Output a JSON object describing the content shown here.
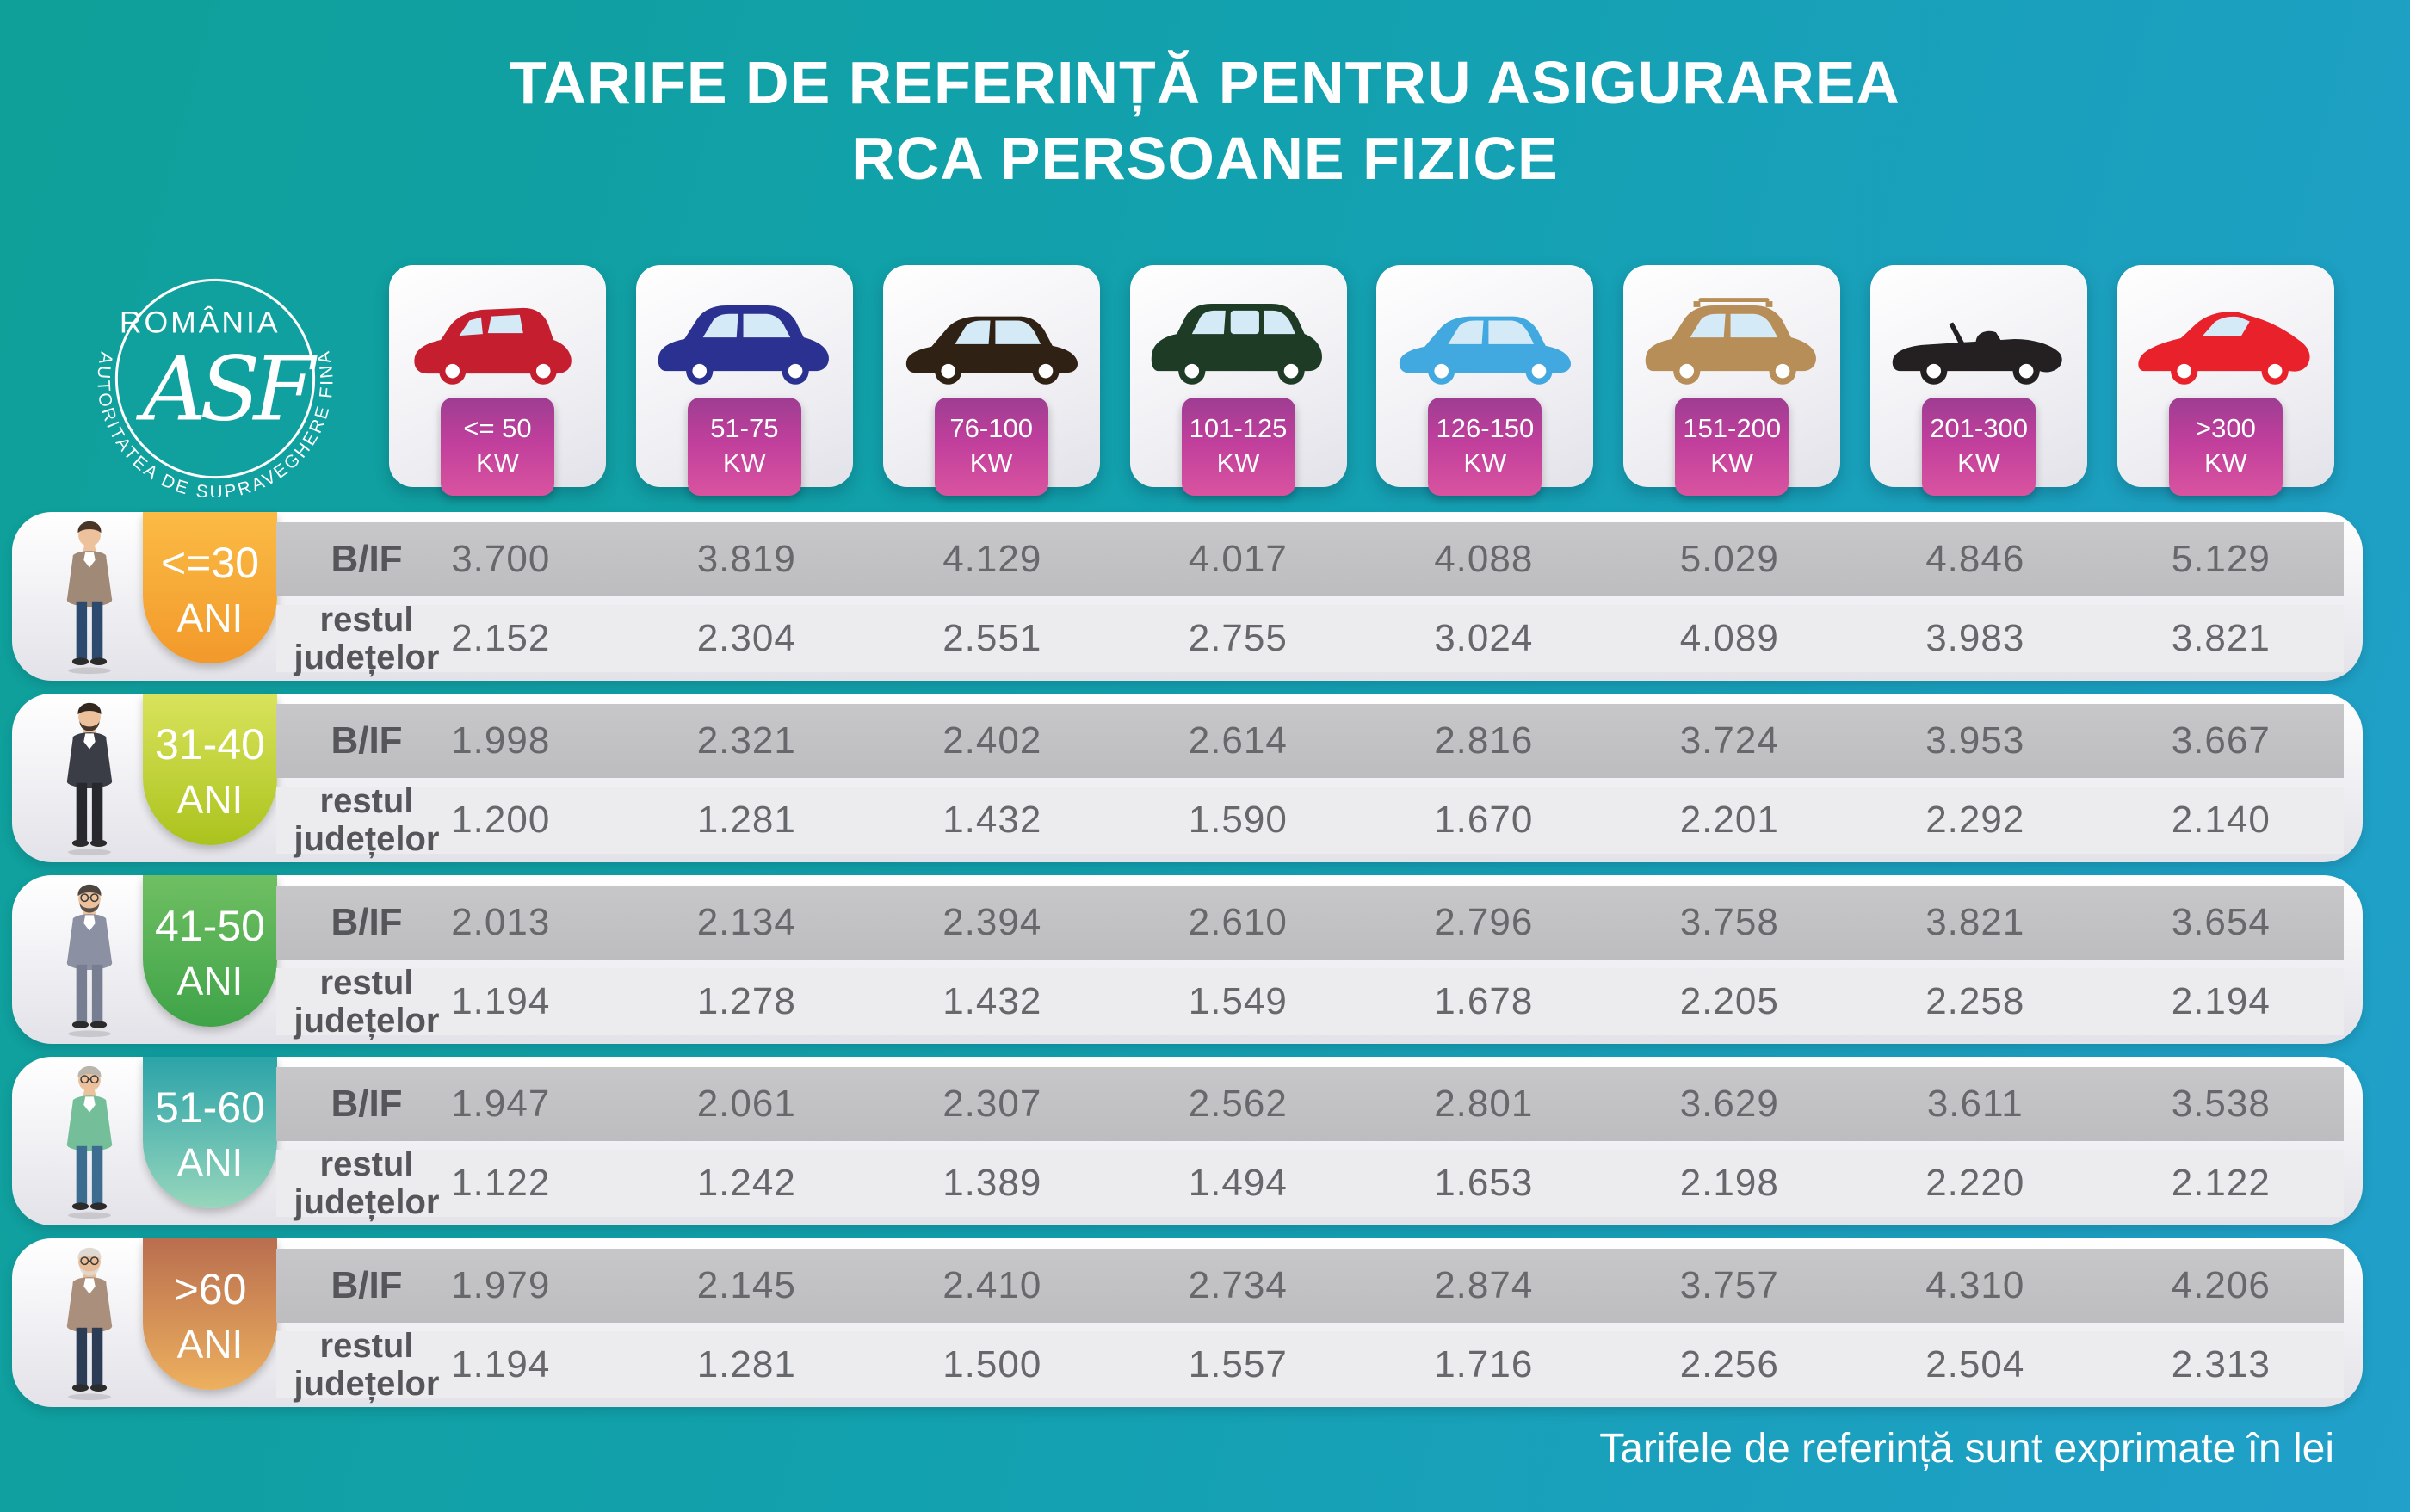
{
  "title": {
    "line1": "TARIFE DE REFERINȚĂ PENTRU ASIGURAREA",
    "line2": "RCA PERSOANE FIZICE"
  },
  "logo": {
    "country": "ROMÂNIA",
    "monogram": "ASF",
    "org": "AUTORITATEA DE SUPRAVEGHERE FINANCIARĂ"
  },
  "labels": {
    "bif": "B/IF",
    "rest_line1": "restul",
    "rest_line2": "județelor"
  },
  "footer_note": "Tarifele de referință sunt exprimate în lei",
  "power_categories": [
    {
      "power": "<= 50",
      "unit": "KW",
      "car_variant": "hatchback",
      "car_color": "#c41e2f"
    },
    {
      "power": "51-75",
      "unit": "KW",
      "car_variant": "suv",
      "car_color": "#2b3190"
    },
    {
      "power": "76-100",
      "unit": "KW",
      "car_variant": "sedan",
      "car_color": "#302115"
    },
    {
      "power": "101-125",
      "unit": "KW",
      "car_variant": "minivan",
      "car_color": "#1d3b25"
    },
    {
      "power": "126-150",
      "unit": "KW",
      "car_variant": "sedan",
      "car_color": "#41a8e0"
    },
    {
      "power": "151-200",
      "unit": "KW",
      "car_variant": "wagon",
      "car_color": "#b78e58"
    },
    {
      "power": "201-300",
      "unit": "KW",
      "car_variant": "convertible",
      "car_color": "#242021"
    },
    {
      "power": ">300",
      "unit": "KW",
      "car_variant": "sports",
      "car_color": "#e8212a"
    }
  ],
  "age_groups": [
    {
      "age": "<=30",
      "suffix": "ANI",
      "badge_top": "#fbbb45",
      "badge_bottom": "#f2992a",
      "person": {
        "skin": "#ecc19c",
        "hair": "#4a3626",
        "top": "#a08a77",
        "pants": "#2c4a6e",
        "beard": null,
        "glasses": false
      }
    },
    {
      "age": "31-40",
      "suffix": "ANI",
      "badge_top": "#d9e35c",
      "badge_bottom": "#abc31d",
      "person": {
        "skin": "#ecc19c",
        "hair": "#33281f",
        "top": "#3a3d45",
        "pants": "#26282e",
        "beard": "#33281f",
        "glasses": false
      }
    },
    {
      "age": "41-50",
      "suffix": "ANI",
      "badge_top": "#6fbf62",
      "badge_bottom": "#3fa348",
      "person": {
        "skin": "#ecc19c",
        "hair": "#4c4540",
        "top": "#8b90a2",
        "pants": "#787e92",
        "beard": "#4c4540",
        "glasses": true
      }
    },
    {
      "age": "51-60",
      "suffix": "ANI",
      "badge_top": "#2ba3a8",
      "badge_bottom": "#97d6bc",
      "person": {
        "skin": "#ecc19c",
        "hair": "#b9b4ac",
        "top": "#74bf99",
        "pants": "#3c6d90",
        "beard": null,
        "glasses": true
      }
    },
    {
      "age": ">60",
      "suffix": "ANI",
      "badge_top": "#b96e4f",
      "badge_bottom": "#edb05e",
      "person": {
        "skin": "#e9bd97",
        "hair": "#ded9d2",
        "top": "#a98f7c",
        "pants": "#2d3c55",
        "beard": "#ded9d2",
        "glasses": true
      }
    }
  ],
  "chart_data": {
    "type": "table",
    "title": "TARIFE DE REFERINȚĂ PENTRU ASIGURAREA RCA PERSOANE FIZICE",
    "unit": "lei",
    "note": "Tarifele de referință sunt exprimate în lei",
    "columns": [
      "<= 50 KW",
      "51-75 KW",
      "76-100 KW",
      "101-125 KW",
      "126-150 KW",
      "151-200 KW",
      "201-300 KW",
      ">300 KW"
    ],
    "row_categories": [
      "B/IF",
      "restul județelor"
    ],
    "rows": [
      {
        "age_group": "<=30 ANI",
        "bif": [
          "3.700",
          "3.819",
          "4.129",
          "4.017",
          "4.088",
          "5.029",
          "4.846",
          "5.129"
        ],
        "restul_judetelor": [
          "2.152",
          "2.304",
          "2.551",
          "2.755",
          "3.024",
          "4.089",
          "3.983",
          "3.821"
        ]
      },
      {
        "age_group": "31-40 ANI",
        "bif": [
          "1.998",
          "2.321",
          "2.402",
          "2.614",
          "2.816",
          "3.724",
          "3.953",
          "3.667"
        ],
        "restul_judetelor": [
          "1.200",
          "1.281",
          "1.432",
          "1.590",
          "1.670",
          "2.201",
          "2.292",
          "2.140"
        ]
      },
      {
        "age_group": "41-50 ANI",
        "bif": [
          "2.013",
          "2.134",
          "2.394",
          "2.610",
          "2.796",
          "3.758",
          "3.821",
          "3.654"
        ],
        "restul_judetelor": [
          "1.194",
          "1.278",
          "1.432",
          "1.549",
          "1.678",
          "2.205",
          "2.258",
          "2.194"
        ]
      },
      {
        "age_group": "51-60 ANI",
        "bif": [
          "1.947",
          "2.061",
          "2.307",
          "2.562",
          "2.801",
          "3.629",
          "3.611",
          "3.538"
        ],
        "restul_judetelor": [
          "1.122",
          "1.242",
          "1.389",
          "1.494",
          "1.653",
          "2.198",
          "2.220",
          "2.122"
        ]
      },
      {
        "age_group": ">60 ANI",
        "bif": [
          "1.979",
          "2.145",
          "2.410",
          "2.734",
          "2.874",
          "3.757",
          "4.310",
          "4.206"
        ],
        "restul_judetelor": [
          "1.194",
          "1.281",
          "1.500",
          "1.557",
          "1.716",
          "2.256",
          "2.504",
          "2.313"
        ]
      }
    ]
  },
  "colors": {
    "background_left": "#0fa099",
    "background_right": "#21a0ca",
    "kw_badge_top": "#9e3d92",
    "kw_badge_bottom": "#d9539f",
    "band_bif": "#c3c3c5",
    "band_rest": "#ececef",
    "value_text": "#67686c",
    "label_text": "#55565a",
    "window_glass": "#d4eaf7"
  }
}
